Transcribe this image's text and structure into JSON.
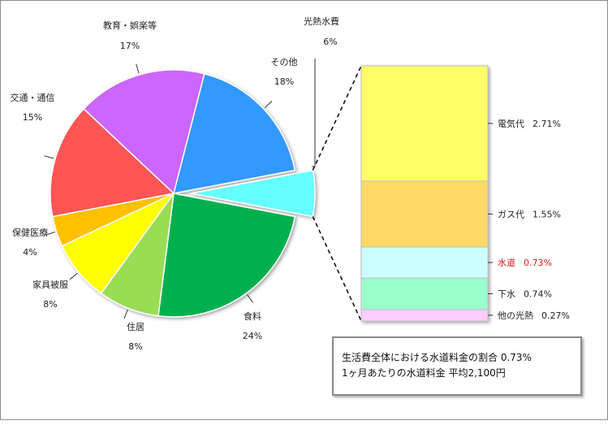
{
  "chart_data": {
    "type": "pie",
    "slices": [
      {
        "label": "光熱水費",
        "value": 6,
        "value_text": "6%",
        "color": "#66ffff",
        "exploded": true
      },
      {
        "label": "食料",
        "value": 24,
        "value_text": "24%",
        "color": "#00b050"
      },
      {
        "label": "住居",
        "value": 8,
        "value_text": "8%",
        "color": "#99dd55"
      },
      {
        "label": "家具被服",
        "value": 8,
        "value_text": "8%",
        "color": "#ffff00"
      },
      {
        "label": "保健医療",
        "value": 4,
        "value_text": "4%",
        "color": "#ffc000"
      },
      {
        "label": "交通・通信",
        "value": 15,
        "value_text": "15%",
        "color": "#ff5555"
      },
      {
        "label": "教育・娯楽等",
        "value": 17,
        "value_text": "17%",
        "color": "#cc66ff"
      },
      {
        "label": "その他",
        "value": 18,
        "value_text": "18%",
        "color": "#3399ff"
      }
    ],
    "breakdown": {
      "parent": "光熱水費",
      "segments": [
        {
          "label": "他の光熱",
          "value": 0.27,
          "value_text": "0.27%",
          "color": "#ffccff"
        },
        {
          "label": "下水",
          "value": 0.74,
          "value_text": "0.74%",
          "color": "#99ffcc"
        },
        {
          "label": "水道",
          "value": 0.73,
          "value_text": "0.73%",
          "color": "#ccffff",
          "highlight": "#e21a1a"
        },
        {
          "label": "ガス代",
          "value": 1.55,
          "value_text": "1.55%",
          "color": "#ffd966"
        },
        {
          "label": "電気代",
          "value": 2.71,
          "value_text": "2.71%",
          "color": "#ffff66"
        }
      ]
    }
  },
  "note": {
    "line1": "生活費全体における水道料金の割合 0.73%",
    "line2": "1ヶ月あたりの水道料金  平均2,100円"
  }
}
